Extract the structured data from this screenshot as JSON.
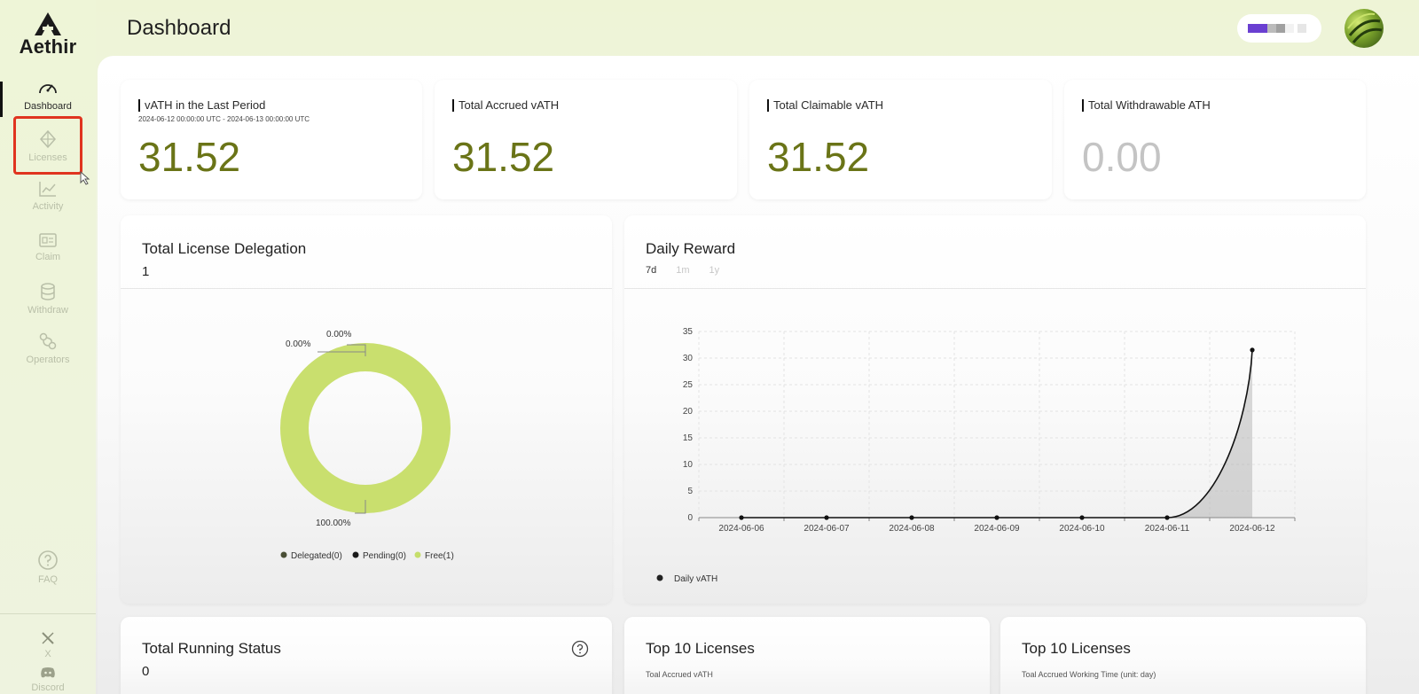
{
  "app": {
    "logo_text": "Aethir"
  },
  "sidebar": {
    "items": [
      {
        "label": "Dashboard",
        "icon": "speedometer-icon"
      },
      {
        "label": "Licenses",
        "icon": "diamond-icon"
      },
      {
        "label": "Activity",
        "icon": "line-chart-icon"
      },
      {
        "label": "Claim",
        "icon": "id-card-icon"
      },
      {
        "label": "Withdraw",
        "icon": "coin-stack-icon"
      },
      {
        "label": "Operators",
        "icon": "operators-icon"
      }
    ],
    "bottom": [
      {
        "label": "FAQ",
        "icon": "question-icon"
      },
      {
        "label": "X",
        "icon": "x-logo-icon"
      },
      {
        "label": "Discord",
        "icon": "discord-icon"
      }
    ]
  },
  "header": {
    "title": "Dashboard"
  },
  "stats": [
    {
      "label": "vATH in the Last Period",
      "sub": "2024-06-12 00:00:00 UTC - 2024-06-13 00:00:00 UTC",
      "value": "31.52"
    },
    {
      "label": "Total Accrued vATH",
      "value": "31.52"
    },
    {
      "label": "Total Claimable vATH",
      "value": "31.52"
    },
    {
      "label": "Total Withdrawable ATH",
      "value": "0.00"
    }
  ],
  "delegation": {
    "title": "Total License Delegation",
    "count": "1",
    "labels": {
      "top_a": "0.00%",
      "top_b": "0.00%",
      "bottom": "100.00%"
    },
    "legend": [
      "Delegated(0)",
      "Pending(0)",
      "Free(1)"
    ],
    "colors": {
      "delegated": "#4a4f36",
      "pending": "#1a1a1a",
      "free": "#c5de6b"
    }
  },
  "daily_reward": {
    "title": "Daily Reward",
    "tabs": [
      "7d",
      "1m",
      "1y"
    ],
    "active_tab": "7d",
    "legend": "Daily vATH"
  },
  "chart_data": {
    "type": "area",
    "x": [
      "2024-06-06",
      "2024-06-07",
      "2024-06-08",
      "2024-06-09",
      "2024-06-10",
      "2024-06-11",
      "2024-06-12"
    ],
    "series": [
      {
        "name": "Daily vATH",
        "values": [
          0,
          0,
          0,
          0,
          0,
          0,
          31.52
        ]
      }
    ],
    "yticks": [
      0,
      5,
      10,
      15,
      20,
      25,
      30,
      35
    ],
    "ylim": [
      0,
      35
    ],
    "grid": true,
    "legend_position": "bottom-left",
    "title": "Daily Reward"
  },
  "running_status": {
    "title": "Total Running Status",
    "count": "0"
  },
  "top_licenses_a": {
    "title": "Top 10 Licenses",
    "sub": "Toal Accrued vATH"
  },
  "top_licenses_b": {
    "title": "Top 10 Licenses",
    "sub": "Toal Accrued Working Time (unit: day)"
  },
  "accent": "#6a7417"
}
